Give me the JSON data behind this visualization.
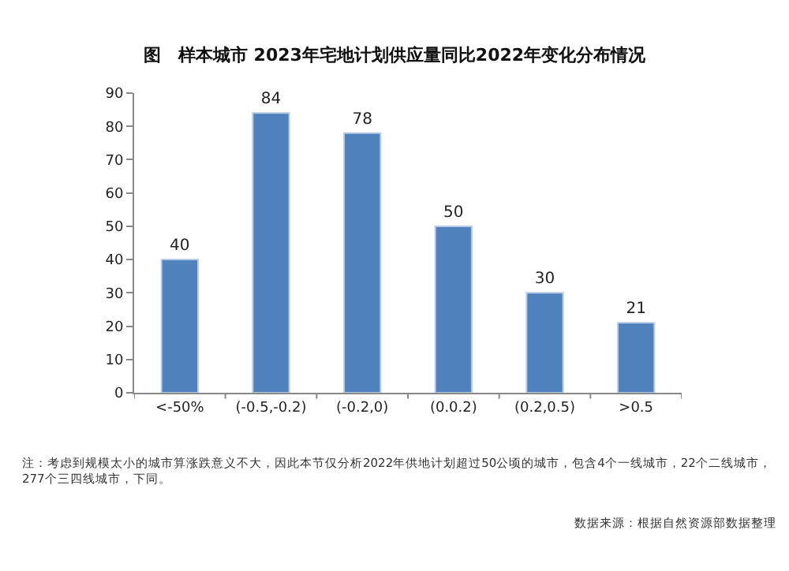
{
  "chart_data": {
    "type": "bar",
    "title": "图　样本城市 2023年宅地计划供应量同比2022年变化分布情况",
    "categories": [
      "<-50%",
      "(-0.5,-0.2)",
      "(-0.2,0)",
      "(0.0.2)",
      "(0.2,0.5)",
      ">0.5"
    ],
    "values": [
      40,
      84,
      78,
      50,
      30,
      21
    ],
    "color": "#4f81bd",
    "ylim": [
      0,
      90
    ],
    "yticks": [
      0,
      10,
      20,
      30,
      40,
      50,
      60,
      70,
      80,
      90
    ],
    "data_labels": true,
    "annotations": [
      "注：考虑到规模太小的城市算涨跌意义不大，因此本节仅分析2022年供地计划超过50公顷的城市，包含4个一线城市，22个二线城市，277个三四线城市，下同。",
      "数据来源：根据自然资源部数据整理"
    ]
  }
}
